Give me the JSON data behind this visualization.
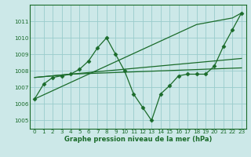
{
  "xlabel": "Graphe pression niveau de la mer (hPa)",
  "x_ticks": [
    0,
    1,
    2,
    3,
    4,
    5,
    6,
    7,
    8,
    9,
    10,
    11,
    12,
    13,
    14,
    15,
    16,
    17,
    18,
    19,
    20,
    21,
    22,
    23
  ],
  "ylim": [
    1004.5,
    1012.0
  ],
  "yticks": [
    1005,
    1006,
    1007,
    1008,
    1009,
    1010,
    1011
  ],
  "bg_color": "#cce8e8",
  "grid_color": "#99cccc",
  "line_color": "#1a6b2a",
  "series": [
    [
      1006.3,
      1007.2,
      1007.6,
      1007.7,
      1007.8,
      1008.1,
      1008.6,
      1009.4,
      1010.0,
      1009.0,
      1008.0,
      1006.6,
      1005.8,
      1005.0,
      1006.6,
      1007.1,
      1007.7,
      1007.8,
      1007.8,
      1007.8,
      1008.3,
      1009.5,
      1010.5,
      1011.5
    ],
    [
      1006.3,
      1006.55,
      1006.8,
      1007.05,
      1007.3,
      1007.55,
      1007.8,
      1008.05,
      1008.3,
      1008.55,
      1008.8,
      1009.05,
      1009.3,
      1009.55,
      1009.8,
      1010.05,
      1010.3,
      1010.55,
      1010.8,
      1010.9,
      1011.0,
      1011.1,
      1011.2,
      1011.5
    ],
    [
      1007.6,
      1007.65,
      1007.7,
      1007.75,
      1007.8,
      1007.85,
      1007.9,
      1007.95,
      1008.0,
      1008.05,
      1008.1,
      1008.15,
      1008.2,
      1008.25,
      1008.3,
      1008.35,
      1008.4,
      1008.45,
      1008.5,
      1008.55,
      1008.6,
      1008.65,
      1008.7,
      1008.75
    ],
    [
      1007.6,
      1007.65,
      1007.7,
      1007.75,
      1007.8,
      1007.82,
      1007.84,
      1007.86,
      1007.88,
      1007.9,
      1007.92,
      1007.94,
      1007.96,
      1007.98,
      1008.0,
      1008.02,
      1008.04,
      1008.06,
      1008.08,
      1008.1,
      1008.12,
      1008.14,
      1008.16,
      1008.18
    ]
  ],
  "marker": "D",
  "marker_size": 2.5,
  "xlabel_fontsize": 6.0,
  "tick_fontsize": 5.2
}
